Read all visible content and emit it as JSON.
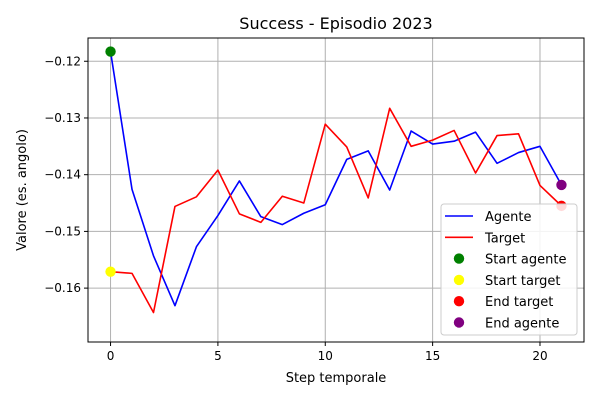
{
  "chart_data": {
    "type": "line",
    "title": "Success - Episodio 2023",
    "xlabel": "Step temporale",
    "ylabel": "Valore (es. angolo)",
    "xlim": [
      -1.05,
      22.05
    ],
    "ylim": [
      -0.1695,
      -0.1159
    ],
    "grid": true,
    "x_ticks": [
      0,
      5,
      10,
      15,
      20
    ],
    "y_ticks": [
      -0.16,
      -0.15,
      -0.14,
      -0.13,
      -0.12
    ],
    "x_tick_labels": [
      "0",
      "5",
      "10",
      "15",
      "20"
    ],
    "y_tick_labels": [
      "−0.16",
      "−0.15",
      "−0.14",
      "−0.13",
      "−0.12"
    ],
    "x": [
      0,
      1,
      2,
      3,
      4,
      5,
      6,
      7,
      8,
      9,
      10,
      11,
      12,
      13,
      14,
      15,
      16,
      17,
      18,
      19,
      20,
      21
    ],
    "series": [
      {
        "name": "Agente",
        "color": "#0000ff",
        "values": [
          -0.1183,
          -0.1426,
          -0.1543,
          -0.1631,
          -0.1527,
          -0.1472,
          -0.1411,
          -0.1474,
          -0.1488,
          -0.1468,
          -0.1453,
          -0.1373,
          -0.1358,
          -0.1427,
          -0.1323,
          -0.1346,
          -0.1341,
          -0.1325,
          -0.138,
          -0.1361,
          -0.135,
          -0.1418
        ]
      },
      {
        "name": "Target",
        "color": "#ff0000",
        "values": [
          -0.1571,
          -0.1574,
          -0.1643,
          -0.1456,
          -0.1439,
          -0.1392,
          -0.1469,
          -0.1484,
          -0.1438,
          -0.145,
          -0.1311,
          -0.1351,
          -0.1441,
          -0.1283,
          -0.135,
          -0.1339,
          -0.1322,
          -0.1397,
          -0.1331,
          -0.1328,
          -0.1419,
          -0.1455
        ]
      }
    ],
    "markers": [
      {
        "name": "Start agente",
        "color": "#008000",
        "x": 0,
        "y": -0.1183
      },
      {
        "name": "Start target",
        "color": "#ffff00",
        "x": 0,
        "y": -0.1571
      },
      {
        "name": "End target",
        "color": "#ff0000",
        "x": 21,
        "y": -0.1455
      },
      {
        "name": "End agente",
        "color": "#800080",
        "x": 21,
        "y": -0.1418
      }
    ],
    "legend": {
      "position": "bottom-right",
      "entries": [
        {
          "label": "Agente",
          "kind": "line",
          "color": "#0000ff"
        },
        {
          "label": "Target",
          "kind": "line",
          "color": "#ff0000"
        },
        {
          "label": "Start agente",
          "kind": "marker",
          "color": "#008000"
        },
        {
          "label": "Start target",
          "kind": "marker",
          "color": "#ffff00"
        },
        {
          "label": "End target",
          "kind": "marker",
          "color": "#ff0000"
        },
        {
          "label": "End agente",
          "kind": "marker",
          "color": "#800080"
        }
      ]
    }
  }
}
